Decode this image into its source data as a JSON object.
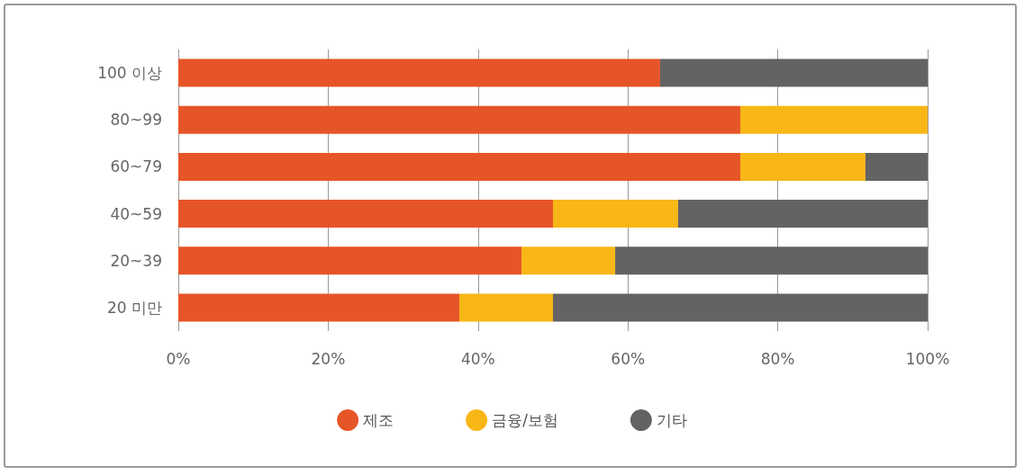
{
  "chart_data": {
    "type": "bar",
    "orientation": "horizontal",
    "stacked": true,
    "categories": [
      "100 이상",
      "80~99",
      "60~79",
      "40~59",
      "20~39",
      "20 미만"
    ],
    "series": [
      {
        "name": "제조",
        "color": "#e65527",
        "values": [
          64.3,
          75,
          75,
          50,
          45.8,
          37.5
        ]
      },
      {
        "name": "금융/보험",
        "color": "#f8b617",
        "values": [
          0,
          25,
          16.7,
          16.7,
          12.5,
          12.5
        ]
      },
      {
        "name": "기타",
        "color": "#636363",
        "values": [
          35.7,
          0,
          8.3,
          33.3,
          41.7,
          50
        ]
      }
    ],
    "xlim": [
      0,
      100
    ],
    "xticks": [
      {
        "value": 0,
        "label": "0%"
      },
      {
        "value": 20,
        "label": "20%"
      },
      {
        "value": 40,
        "label": "40%"
      },
      {
        "value": 60,
        "label": "60%"
      },
      {
        "value": 80,
        "label": "80%"
      },
      {
        "value": 100,
        "label": "100%"
      }
    ],
    "grid": "x",
    "legend": "bottom"
  }
}
